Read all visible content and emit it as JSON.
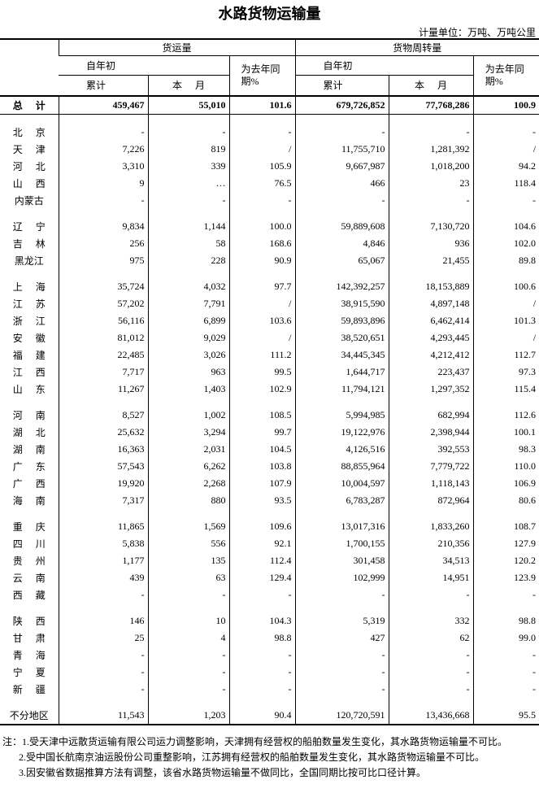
{
  "header": {
    "title": "水路货物运输量",
    "unit": "计量单位：万吨、万吨公里"
  },
  "table": {
    "column_groups": [
      {
        "name": "货运量",
        "ytd": "自年初",
        "cumulative": "累计",
        "month": "本月",
        "yoy": "为去年同期%"
      },
      {
        "name": "货物周转量",
        "ytd": "自年初",
        "cumulative": "累计",
        "month": "本月",
        "yoy": "为去年同期%"
      }
    ],
    "total": {
      "region": "总计",
      "cells": [
        "459,467",
        "55,010",
        "101.6",
        "679,726,852",
        "77,768,286",
        "100.9"
      ]
    },
    "groups": [
      [
        {
          "region": "北京",
          "cells": [
            "-",
            "-",
            "-",
            "-",
            "-",
            "-"
          ]
        },
        {
          "region": "天津",
          "cells": [
            "7,226",
            "819",
            "/",
            "11,755,710",
            "1,281,392",
            "/"
          ]
        },
        {
          "region": "河北",
          "cells": [
            "3,310",
            "339",
            "105.9",
            "9,667,987",
            "1,018,200",
            "94.2"
          ]
        },
        {
          "region": "山西",
          "cells": [
            "9",
            "…",
            "76.5",
            "466",
            "23",
            "118.4"
          ]
        },
        {
          "region": "内蒙古",
          "cells": [
            "-",
            "-",
            "-",
            "-",
            "-",
            "-"
          ]
        }
      ],
      [
        {
          "region": "辽宁",
          "cells": [
            "9,834",
            "1,144",
            "100.0",
            "59,889,608",
            "7,130,720",
            "104.6"
          ]
        },
        {
          "region": "吉林",
          "cells": [
            "256",
            "58",
            "168.6",
            "4,846",
            "936",
            "102.0"
          ]
        },
        {
          "region": "黑龙江",
          "cells": [
            "975",
            "228",
            "90.9",
            "65,067",
            "21,455",
            "89.8"
          ]
        }
      ],
      [
        {
          "region": "上海",
          "cells": [
            "35,724",
            "4,032",
            "97.7",
            "142,392,257",
            "18,153,889",
            "100.6"
          ]
        },
        {
          "region": "江苏",
          "cells": [
            "57,202",
            "7,791",
            "/",
            "38,915,590",
            "4,897,148",
            "/"
          ]
        },
        {
          "region": "浙江",
          "cells": [
            "56,116",
            "6,899",
            "103.6",
            "59,893,896",
            "6,462,414",
            "101.3"
          ]
        },
        {
          "region": "安徽",
          "cells": [
            "81,012",
            "9,029",
            "/",
            "38,520,651",
            "4,293,445",
            "/"
          ]
        },
        {
          "region": "福建",
          "cells": [
            "22,485",
            "3,026",
            "111.2",
            "34,445,345",
            "4,212,412",
            "112.7"
          ]
        },
        {
          "region": "江西",
          "cells": [
            "7,717",
            "963",
            "99.5",
            "1,644,717",
            "223,437",
            "97.3"
          ]
        },
        {
          "region": "山东",
          "cells": [
            "11,267",
            "1,403",
            "102.9",
            "11,794,121",
            "1,297,352",
            "115.4"
          ]
        }
      ],
      [
        {
          "region": "河南",
          "cells": [
            "8,527",
            "1,002",
            "108.5",
            "5,994,985",
            "682,994",
            "112.6"
          ]
        },
        {
          "region": "湖北",
          "cells": [
            "25,632",
            "3,294",
            "99.7",
            "19,122,976",
            "2,398,944",
            "100.1"
          ]
        },
        {
          "region": "湖南",
          "cells": [
            "16,363",
            "2,031",
            "104.5",
            "4,126,516",
            "392,553",
            "98.3"
          ]
        },
        {
          "region": "广东",
          "cells": [
            "57,543",
            "6,262",
            "103.8",
            "88,855,964",
            "7,779,722",
            "110.0"
          ]
        },
        {
          "region": "广西",
          "cells": [
            "19,920",
            "2,268",
            "107.9",
            "10,004,597",
            "1,118,143",
            "106.9"
          ]
        },
        {
          "region": "海南",
          "cells": [
            "7,317",
            "880",
            "93.5",
            "6,783,287",
            "872,964",
            "80.6"
          ]
        }
      ],
      [
        {
          "region": "重庆",
          "cells": [
            "11,865",
            "1,569",
            "109.6",
            "13,017,316",
            "1,833,260",
            "108.7"
          ]
        },
        {
          "region": "四川",
          "cells": [
            "5,838",
            "556",
            "92.1",
            "1,700,155",
            "210,356",
            "127.9"
          ]
        },
        {
          "region": "贵州",
          "cells": [
            "1,177",
            "135",
            "112.4",
            "301,458",
            "34,513",
            "120.2"
          ]
        },
        {
          "region": "云南",
          "cells": [
            "439",
            "63",
            "129.4",
            "102,999",
            "14,951",
            "123.9"
          ]
        },
        {
          "region": "西藏",
          "cells": [
            "-",
            "-",
            "-",
            "-",
            "-",
            "-"
          ]
        }
      ],
      [
        {
          "region": "陕西",
          "cells": [
            "146",
            "10",
            "104.3",
            "5,319",
            "332",
            "98.8"
          ]
        },
        {
          "region": "甘肃",
          "cells": [
            "25",
            "4",
            "98.8",
            "427",
            "62",
            "99.0"
          ]
        },
        {
          "region": "青海",
          "cells": [
            "-",
            "-",
            "-",
            "-",
            "-",
            "-"
          ]
        },
        {
          "region": "宁夏",
          "cells": [
            "-",
            "-",
            "-",
            "-",
            "-",
            "-"
          ]
        },
        {
          "region": "新疆",
          "cells": [
            "-",
            "-",
            "-",
            "-",
            "-",
            "-"
          ]
        }
      ],
      [
        {
          "region": "不分地区",
          "cells": [
            "11,543",
            "1,203",
            "90.4",
            "120,720,591",
            "13,436,668",
            "95.5"
          ]
        }
      ]
    ]
  },
  "notes": [
    "注：1.受天津中远散货运输有限公司运力调整影响，天津拥有经营权的船舶数量发生变化，其水路货物运输量不可比。",
    "2.受中国长航南京油运股份公司重整影响，江苏拥有经营权的船舶数量发生变化，其水路货物运输量不可比。",
    "3.因安徽省数据推算方法有调整，该省水路货物运输量不做同比，全国同期比按可比口径计算。"
  ]
}
